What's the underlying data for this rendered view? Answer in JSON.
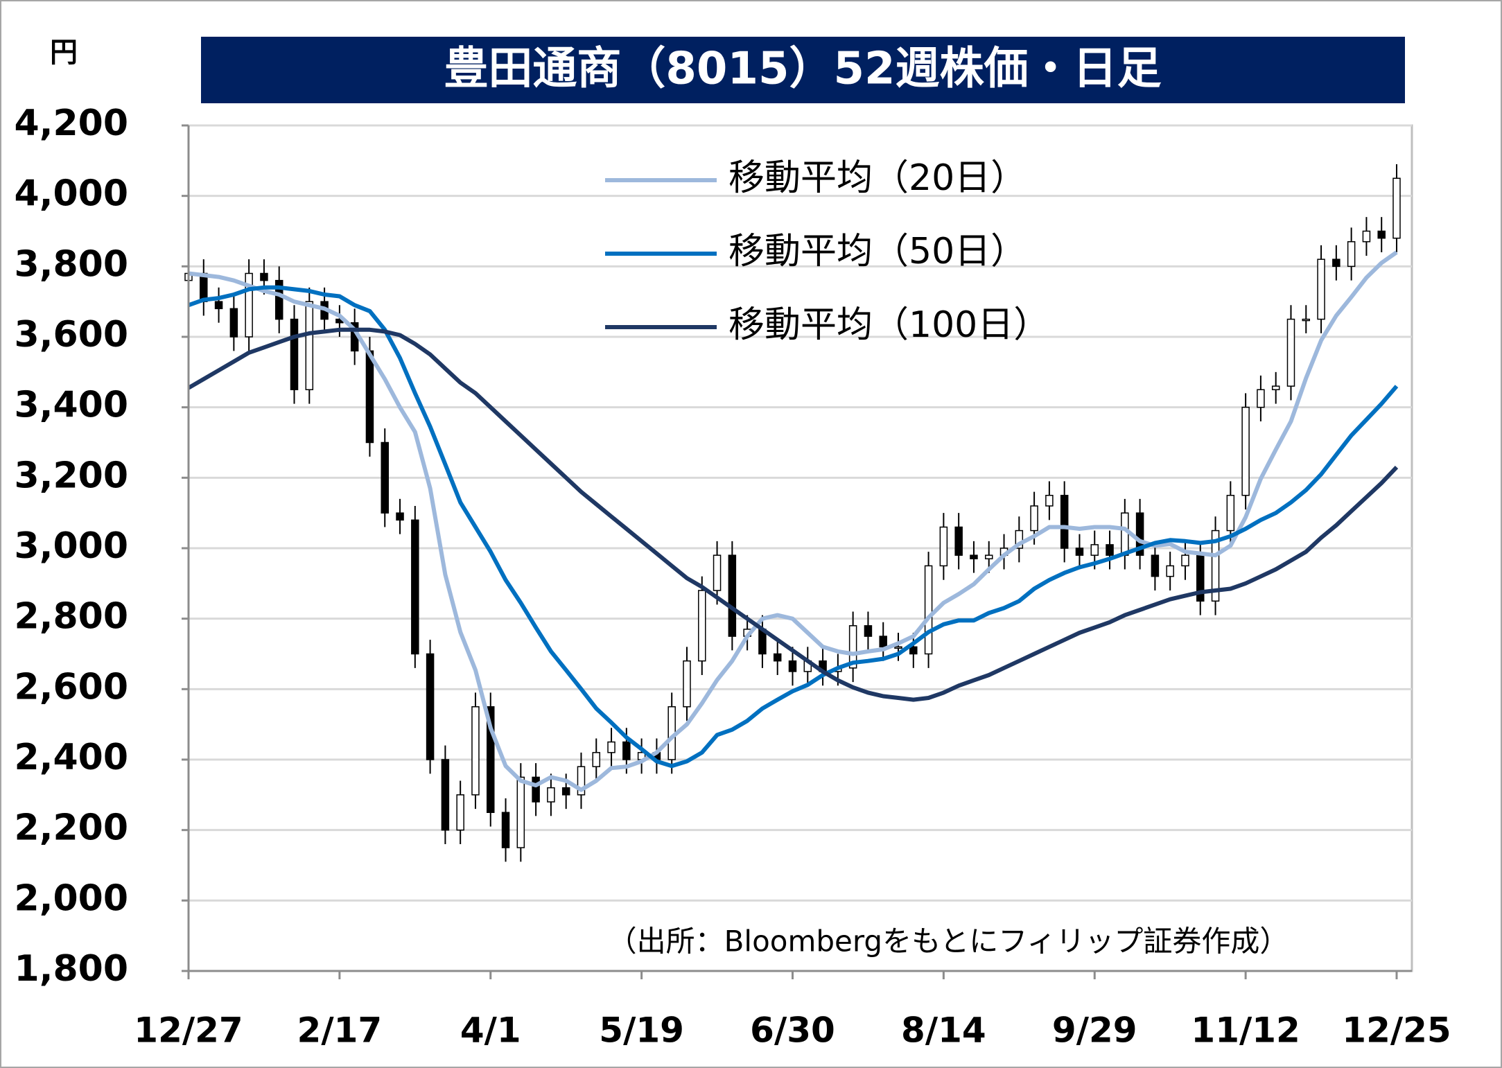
{
  "chart_data": {
    "type": "candlestick",
    "title": "豊田通商（8015）52週株価・日足",
    "y_unit": "円",
    "source": "（出所：Bloombergをもとにフィリップ証券作成）",
    "categories": [
      "12/27",
      null,
      null,
      null,
      null,
      null,
      null,
      null,
      null,
      null,
      "2/17",
      null,
      null,
      null,
      null,
      null,
      null,
      null,
      null,
      null,
      "4/1",
      null,
      null,
      null,
      null,
      null,
      null,
      null,
      null,
      null,
      "5/19",
      null,
      null,
      null,
      null,
      null,
      null,
      null,
      null,
      null,
      "6/30",
      null,
      null,
      null,
      null,
      null,
      null,
      null,
      null,
      null,
      "8/14",
      null,
      null,
      null,
      null,
      null,
      null,
      null,
      null,
      null,
      "9/29",
      null,
      null,
      null,
      null,
      null,
      null,
      null,
      null,
      null,
      "11/12",
      null,
      null,
      null,
      null,
      null,
      null,
      null,
      null,
      null,
      "12/25"
    ],
    "open": [
      3760,
      3780,
      3700,
      3680,
      3600,
      3780,
      3760,
      3650,
      3450,
      3700,
      3650,
      3640,
      3560,
      3300,
      3100,
      3080,
      2700,
      2400,
      2200,
      2300,
      2550,
      2250,
      2150,
      2350,
      2280,
      2320,
      2300,
      2380,
      2420,
      2450,
      2400,
      2420,
      2400,
      2550,
      2680,
      2880,
      2980,
      2750,
      2770,
      2700,
      2680,
      2650,
      2680,
      2650,
      2660,
      2780,
      2750,
      2720,
      2720,
      2700,
      2950,
      3060,
      2980,
      2970,
      2980,
      3000,
      3050,
      3120,
      3150,
      3000,
      2980,
      3010,
      2980,
      3100,
      2980,
      2920,
      2950,
      2980,
      2850,
      3050,
      3150,
      3400,
      3450,
      3460,
      3650,
      3650,
      3820,
      3800,
      3870,
      3900,
      3880
    ],
    "high": [
      3820,
      3820,
      3740,
      3720,
      3820,
      3820,
      3800,
      3690,
      3740,
      3740,
      3690,
      3680,
      3600,
      3340,
      3140,
      3120,
      2740,
      2440,
      2340,
      2590,
      2590,
      2290,
      2390,
      2390,
      2360,
      2360,
      2420,
      2460,
      2490,
      2490,
      2460,
      2460,
      2590,
      2720,
      2920,
      3020,
      3020,
      2810,
      2810,
      2740,
      2720,
      2720,
      2720,
      2700,
      2820,
      2820,
      2790,
      2760,
      2760,
      2990,
      3100,
      3100,
      3020,
      3020,
      3040,
      3090,
      3160,
      3190,
      3190,
      3040,
      3050,
      3050,
      3140,
      3140,
      3020,
      2990,
      3020,
      3020,
      3090,
      3190,
      3440,
      3490,
      3500,
      3690,
      3690,
      3860,
      3860,
      3910,
      3940,
      3940,
      4090
    ],
    "low": [
      3720,
      3660,
      3640,
      3560,
      3560,
      3720,
      3610,
      3410,
      3410,
      3610,
      3600,
      3520,
      3260,
      3060,
      3040,
      2660,
      2360,
      2160,
      2160,
      2260,
      2210,
      2110,
      2110,
      2240,
      2240,
      2260,
      2260,
      2340,
      2380,
      2360,
      2360,
      2360,
      2360,
      2510,
      2640,
      2840,
      2710,
      2710,
      2660,
      2640,
      2610,
      2610,
      2610,
      2610,
      2620,
      2710,
      2680,
      2680,
      2660,
      2660,
      2910,
      2940,
      2930,
      2930,
      2940,
      2960,
      3010,
      3080,
      2960,
      2940,
      2940,
      2940,
      2940,
      2940,
      2880,
      2880,
      2910,
      2810,
      2810,
      3010,
      3110,
      3360,
      3410,
      3420,
      3610,
      3610,
      3760,
      3760,
      3830,
      3840,
      3840
    ],
    "close": [
      3780,
      3700,
      3680,
      3600,
      3780,
      3760,
      3650,
      3450,
      3700,
      3650,
      3640,
      3560,
      3300,
      3100,
      3080,
      2700,
      2400,
      2200,
      2300,
      2550,
      2250,
      2150,
      2350,
      2280,
      2320,
      2300,
      2380,
      2420,
      2450,
      2400,
      2420,
      2400,
      2550,
      2680,
      2880,
      2980,
      2750,
      2770,
      2700,
      2680,
      2650,
      2680,
      2650,
      2660,
      2780,
      2750,
      2720,
      2720,
      2700,
      2950,
      3060,
      2980,
      2970,
      2980,
      3000,
      3050,
      3120,
      3150,
      3000,
      2980,
      3010,
      2980,
      3100,
      2980,
      2920,
      2950,
      2980,
      2850,
      3050,
      3150,
      3400,
      3450,
      3460,
      3650,
      3650,
      3820,
      3800,
      3870,
      3900,
      3880,
      4050
    ],
    "up_color": "#ffffff",
    "down_color": "#000000",
    "series": [
      {
        "name": "移動平均（20日）",
        "color": "#9db8dc",
        "values": [
          3780,
          3775,
          3770,
          3760,
          3745,
          3730,
          3720,
          3700,
          3690,
          3680,
          3660,
          3620,
          3550,
          3480,
          3400,
          3330,
          3170,
          2925,
          2762,
          2654,
          2490,
          2382,
          2340,
          2327,
          2350,
          2340,
          2314,
          2340,
          2376,
          2380,
          2395,
          2420,
          2463,
          2500,
          2560,
          2626,
          2680,
          2750,
          2800,
          2810,
          2800,
          2760,
          2720,
          2707,
          2700,
          2707,
          2713,
          2730,
          2750,
          2803,
          2845,
          2870,
          2898,
          2940,
          2980,
          3012,
          3034,
          3060,
          3060,
          3055,
          3060,
          3060,
          3055,
          3020,
          3007,
          3012,
          2990,
          2985,
          2980,
          3007,
          3088,
          3197,
          3280,
          3360,
          3483,
          3590,
          3660,
          3713,
          3768,
          3810,
          3840
        ]
      },
      {
        "name": "移動平均（50日）",
        "color": "#0070c0",
        "values": [
          3690,
          3705,
          3710,
          3720,
          3735,
          3740,
          3740,
          3735,
          3730,
          3720,
          3715,
          3690,
          3673,
          3620,
          3540,
          3440,
          3345,
          3238,
          3130,
          3060,
          2990,
          2910,
          2845,
          2775,
          2707,
          2654,
          2600,
          2545,
          2505,
          2463,
          2430,
          2395,
          2382,
          2395,
          2420,
          2470,
          2485,
          2510,
          2545,
          2570,
          2594,
          2612,
          2640,
          2660,
          2675,
          2680,
          2686,
          2700,
          2730,
          2762,
          2784,
          2795,
          2795,
          2816,
          2830,
          2850,
          2885,
          2910,
          2930,
          2946,
          2957,
          2970,
          2985,
          3000,
          3015,
          3023,
          3020,
          3015,
          3020,
          3034,
          3055,
          3080,
          3100,
          3130,
          3165,
          3210,
          3265,
          3320,
          3365,
          3410,
          3460
        ]
      },
      {
        "name": "移動平均（100日）",
        "color": "#1f3864",
        "values": [
          3455,
          3480,
          3505,
          3530,
          3555,
          3570,
          3585,
          3600,
          3610,
          3615,
          3620,
          3620,
          3620,
          3615,
          3605,
          3580,
          3550,
          3510,
          3470,
          3440,
          3400,
          3360,
          3320,
          3280,
          3240,
          3200,
          3160,
          3125,
          3090,
          3055,
          3020,
          2985,
          2950,
          2915,
          2890,
          2860,
          2830,
          2800,
          2770,
          2740,
          2710,
          2680,
          2650,
          2625,
          2605,
          2590,
          2580,
          2575,
          2570,
          2575,
          2590,
          2610,
          2625,
          2640,
          2660,
          2680,
          2700,
          2720,
          2740,
          2760,
          2775,
          2790,
          2810,
          2825,
          2840,
          2855,
          2865,
          2875,
          2880,
          2885,
          2900,
          2920,
          2940,
          2965,
          2990,
          3030,
          3065,
          3105,
          3145,
          3185,
          3230
        ]
      }
    ],
    "ylim": [
      1800,
      4200
    ],
    "yticks": [
      {
        "value": 1800,
        "label": "1,800"
      },
      {
        "value": 2000,
        "label": "2,000"
      },
      {
        "value": 2200,
        "label": "2,200"
      },
      {
        "value": 2400,
        "label": "2,400"
      },
      {
        "value": 2600,
        "label": "2,600"
      },
      {
        "value": 2800,
        "label": "2,800"
      },
      {
        "value": 3000,
        "label": "3,000"
      },
      {
        "value": 3200,
        "label": "3,200"
      },
      {
        "value": 3400,
        "label": "3,400"
      },
      {
        "value": 3600,
        "label": "3,600"
      },
      {
        "value": 3800,
        "label": "3,800"
      },
      {
        "value": 4000,
        "label": "4,000"
      },
      {
        "value": 4200,
        "label": "4,200"
      }
    ],
    "grid": true,
    "legend": "upper center",
    "title_color": "#002060"
  }
}
